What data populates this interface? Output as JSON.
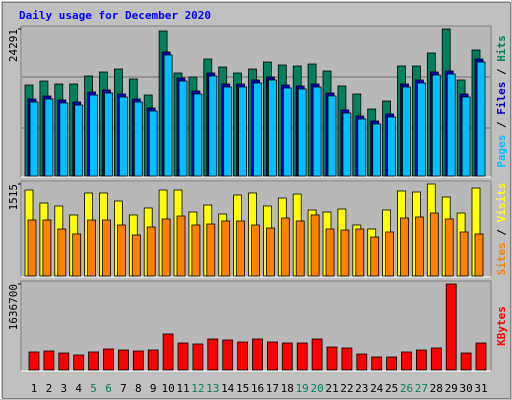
{
  "title": "Daily usage for December 2020",
  "chart_data": [
    {
      "type": "bar",
      "ylim": [
        0,
        24291
      ],
      "yticks": [
        24291
      ],
      "legend_separator": " / ",
      "series": [
        {
          "name": "Hits",
          "color": "#00805c",
          "values": [
            15037,
            15698,
            15202,
            15202,
            16525,
            17186,
            17681,
            16029,
            13385,
            23960,
            17020,
            16359,
            19334,
            18012,
            17020,
            17681,
            18838,
            18342,
            18177,
            18507,
            17351,
            14872,
            13550,
            11071,
            12393,
            18177,
            18177,
            20325,
            24291,
            15863,
            20821
          ]
        },
        {
          "name": "Files",
          "color": "#0000c0",
          "values": [
            12724,
            13220,
            12559,
            12228,
            13881,
            14211,
            13550,
            12724,
            11237,
            20491,
            16194,
            14046,
            17021,
            15203,
            15203,
            15864,
            16360,
            15038,
            14872,
            15203,
            13716,
            10906,
            9915,
            9089,
            10245,
            15203,
            15864,
            17186,
            17351,
            13550,
            19334
          ]
        },
        {
          "name": "Pages",
          "color": "#00c0ff",
          "values": [
            12228,
            12724,
            12063,
            11732,
            13385,
            13715,
            13054,
            12228,
            10741,
            19995,
            15698,
            13550,
            16525,
            14707,
            14707,
            15368,
            15864,
            14542,
            14376,
            14707,
            13220,
            10410,
            9419,
            8593,
            9749,
            14707,
            15368,
            16690,
            16855,
            13054,
            18838
          ]
        }
      ]
    },
    {
      "type": "bar",
      "ylim": [
        0,
        1515
      ],
      "yticks": [
        1515
      ],
      "legend_separator": " / ",
      "series": [
        {
          "name": "Visits",
          "color": "#ffff00",
          "values": [
            1416,
            1202,
            1153,
            1005,
            1367,
            1367,
            1235,
            1005,
            1120,
            1416,
            1416,
            1054,
            1169,
            1021,
            1334,
            1367,
            1153,
            1284,
            1350,
            1087,
            1054,
            1103,
            840,
            774,
            1087,
            1400,
            1383,
            1515,
            1301,
            1037,
            1449
          ]
        },
        {
          "name": "Sites",
          "color": "#ff8000",
          "values": [
            922,
            922,
            774,
            692,
            922,
            922,
            840,
            675,
            807,
            939,
            988,
            840,
            856,
            906,
            906,
            840,
            790,
            955,
            906,
            1005,
            774,
            757,
            774,
            642,
            725,
            955,
            972,
            1037,
            939,
            725,
            692
          ]
        }
      ]
    },
    {
      "type": "bar",
      "ylim": [
        0,
        1636700
      ],
      "yticks": [
        1636700
      ],
      "categories": [
        "1",
        "2",
        "3",
        "4",
        "5",
        "6",
        "7",
        "8",
        "9",
        "10",
        "11",
        "12",
        "13",
        "14",
        "15",
        "16",
        "17",
        "18",
        "19",
        "20",
        "21",
        "22",
        "23",
        "24",
        "25",
        "26",
        "27",
        "28",
        "29",
        "30",
        "31"
      ],
      "category_colors": [
        "#000000",
        "#000000",
        "#000000",
        "#000000",
        "#00805c",
        "#00805c",
        "#000000",
        "#000000",
        "#000000",
        "#000000",
        "#000000",
        "#00805c",
        "#00805c",
        "#000000",
        "#000000",
        "#000000",
        "#000000",
        "#000000",
        "#00805c",
        "#00805c",
        "#000000",
        "#000000",
        "#000000",
        "#000000",
        "#000000",
        "#00805c",
        "#00805c",
        "#000000",
        "#000000",
        "#000000",
        "#000000"
      ],
      "series": [
        {
          "name": "KBytes",
          "color": "#ff0000",
          "values": [
            342565,
            361596,
            323535,
            285471,
            342565,
            399659,
            380628,
            361596,
            380628,
            685130,
            513848,
            494816,
            589973,
            570942,
            532879,
            589973,
            532879,
            513848,
            513848,
            589973,
            437722,
            418690,
            304503,
            247407,
            247407,
            342565,
            380628,
            418690,
            1636700,
            323535,
            513848
          ]
        }
      ]
    }
  ]
}
